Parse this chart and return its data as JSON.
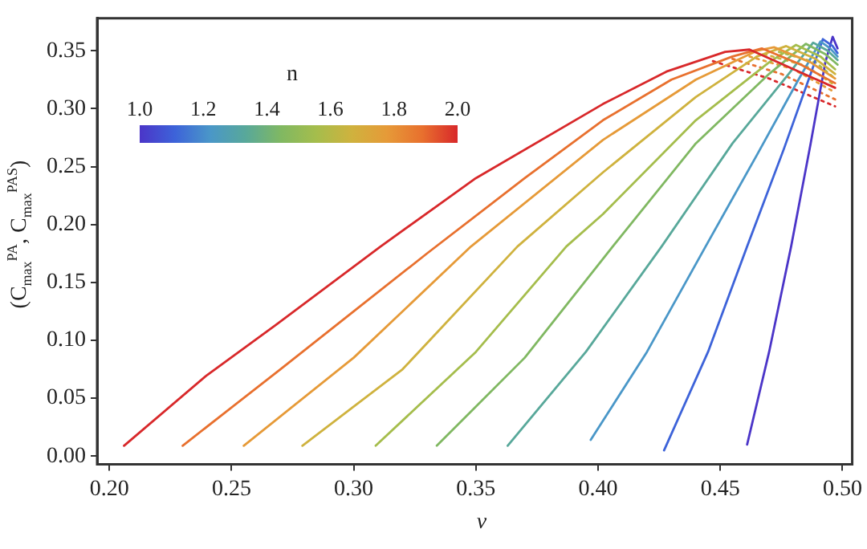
{
  "chart_data": {
    "type": "line",
    "xlabel": "ν",
    "ylabel": "(C$_{max}$$^{PA}$, C$_{max}$$^{PAS}$)",
    "legend_title": "n",
    "annotations": [
      "1.0",
      "1.2",
      "1.4",
      "1.6",
      "1.8",
      "2.0"
    ],
    "xlim": [
      0.195,
      0.504
    ],
    "ylim": [
      -0.007,
      0.378
    ],
    "xticks": [
      {
        "value": 0.2,
        "label": "0.20"
      },
      {
        "value": 0.25,
        "label": "0.25"
      },
      {
        "value": 0.3,
        "label": "0.30"
      },
      {
        "value": 0.35,
        "label": "0.35"
      },
      {
        "value": 0.4,
        "label": "0.40"
      },
      {
        "value": 0.45,
        "label": "0.45"
      },
      {
        "value": 0.5,
        "label": "0.50"
      }
    ],
    "yticks": [
      {
        "value": 0,
        "label": "0.00"
      },
      {
        "value": 0.05,
        "label": "0.05"
      },
      {
        "value": 0.1,
        "label": "0.10"
      },
      {
        "value": 0.15,
        "label": "0.15"
      },
      {
        "value": 0.2,
        "label": "0.20"
      },
      {
        "value": 0.25,
        "label": "0.25"
      },
      {
        "value": 0.3,
        "label": "0.30"
      },
      {
        "value": 0.35,
        "label": "0.35"
      }
    ],
    "grid": false,
    "legend": false,
    "marker": "none",
    "line_style": "solid",
    "series": [
      {
        "color": "#d8282a",
        "x": [
          0.206,
          0.24,
          0.268,
          0.311,
          0.35,
          0.402,
          0.428,
          0.452,
          0.462,
          0.48,
          0.497
        ],
        "values": [
          0.009,
          0.07,
          0.113,
          0.181,
          0.24,
          0.304,
          0.332,
          0.349,
          0.351,
          0.334,
          0.318
        ]
      },
      {
        "color": "#e8702e",
        "x": [
          0.23,
          0.27,
          0.3,
          0.33,
          0.37,
          0.402,
          0.43,
          0.455,
          0.467,
          0.483,
          0.497
        ],
        "values": [
          0.009,
          0.075,
          0.125,
          0.175,
          0.24,
          0.29,
          0.325,
          0.345,
          0.352,
          0.338,
          0.322
        ]
      },
      {
        "color": "#e69a38",
        "x": [
          0.255,
          0.3,
          0.348,
          0.402,
          0.44,
          0.465,
          0.472,
          0.487,
          0.497
        ],
        "values": [
          0.009,
          0.085,
          0.181,
          0.273,
          0.325,
          0.35,
          0.353,
          0.34,
          0.326
        ]
      },
      {
        "color": "#cfb23e",
        "x": [
          0.279,
          0.32,
          0.367,
          0.402,
          0.44,
          0.465,
          0.477,
          0.489,
          0.497
        ],
        "values": [
          0.009,
          0.075,
          0.181,
          0.245,
          0.31,
          0.345,
          0.354,
          0.343,
          0.33
        ]
      },
      {
        "color": "#a5bd4c",
        "x": [
          0.309,
          0.35,
          0.387,
          0.402,
          0.44,
          0.47,
          0.481,
          0.491,
          0.497
        ],
        "values": [
          0.009,
          0.09,
          0.181,
          0.209,
          0.29,
          0.34,
          0.355,
          0.345,
          0.334
        ]
      },
      {
        "color": "#80b862",
        "x": [
          0.334,
          0.37,
          0.406,
          0.44,
          0.47,
          0.485,
          0.493,
          0.498
        ],
        "values": [
          0.009,
          0.085,
          0.181,
          0.27,
          0.33,
          0.356,
          0.347,
          0.338
        ]
      },
      {
        "color": "#58a89a",
        "x": [
          0.363,
          0.395,
          0.426,
          0.455,
          0.478,
          0.488,
          0.494,
          0.498
        ],
        "values": [
          0.009,
          0.09,
          0.181,
          0.27,
          0.33,
          0.357,
          0.35,
          0.342
        ]
      },
      {
        "color": "#4a97c8",
        "x": [
          0.397,
          0.42,
          0.444,
          0.465,
          0.482,
          0.491,
          0.495,
          0.498
        ],
        "values": [
          0.014,
          0.09,
          0.181,
          0.26,
          0.325,
          0.358,
          0.352,
          0.345
        ]
      },
      {
        "color": "#3d63d9",
        "x": [
          0.427,
          0.445,
          0.461,
          0.476,
          0.487,
          0.492,
          0.496,
          0.498
        ],
        "values": [
          0.005,
          0.09,
          0.181,
          0.265,
          0.33,
          0.36,
          0.354,
          0.348
        ]
      },
      {
        "color": "#4b35c8",
        "x": [
          0.461,
          0.47,
          0.479,
          0.487,
          0.493,
          0.496,
          0.498
        ],
        "values": [
          0.01,
          0.09,
          0.181,
          0.27,
          0.34,
          0.362,
          0.352
        ]
      },
      {
        "color": "#d8282a",
        "line_style": "dotted",
        "x": [
          0.447,
          0.47,
          0.497
        ],
        "values": [
          0.341,
          0.326,
          0.302
        ]
      },
      {
        "color": "#e8702e",
        "line_style": "dotted",
        "x": [
          0.455,
          0.475,
          0.497
        ],
        "values": [
          0.343,
          0.33,
          0.308
        ]
      },
      {
        "color": "#e69a38",
        "line_style": "dotted",
        "x": [
          0.462,
          0.48,
          0.497
        ],
        "values": [
          0.345,
          0.334,
          0.314
        ]
      },
      {
        "color": "#cfb23e",
        "line_style": "dotted",
        "x": [
          0.468,
          0.485,
          0.497
        ],
        "values": [
          0.347,
          0.337,
          0.32
        ]
      },
      {
        "color": "#a5bd4c",
        "line_style": "dotted",
        "x": [
          0.474,
          0.489,
          0.497
        ],
        "values": [
          0.349,
          0.34,
          0.326
        ]
      }
    ]
  }
}
